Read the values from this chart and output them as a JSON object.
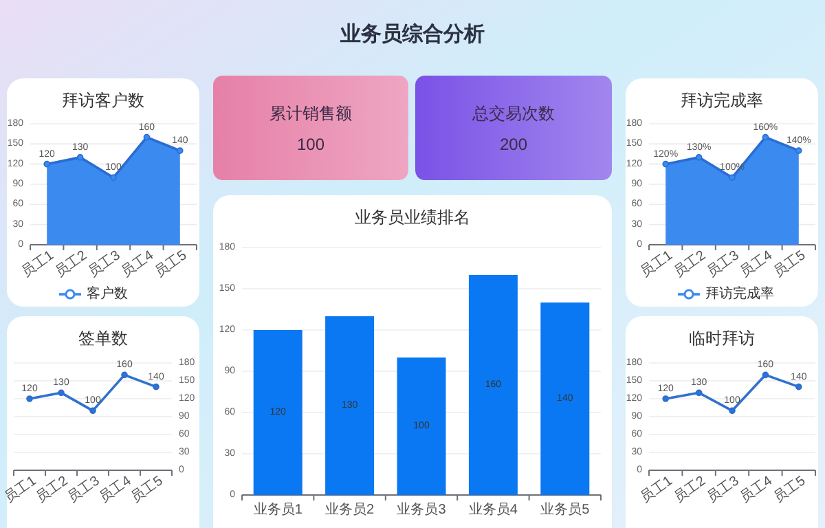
{
  "chart_data": [
    {
      "type": "other",
      "title": "业务员综合分析"
    },
    {
      "type": "area",
      "title": "拜访客户数",
      "categories": [
        "员工1",
        "员工2",
        "员工3",
        "员工4",
        "员工5"
      ],
      "series": [
        {
          "name": "客户数",
          "color": "#3b8af0",
          "values": [
            120,
            130,
            100,
            160,
            140
          ]
        }
      ],
      "ylim": [
        0,
        180
      ],
      "yticks": [
        0,
        30,
        60,
        90,
        120,
        150,
        180
      ],
      "grid": "y",
      "legend": "bottom",
      "marker": "circle",
      "data_labels": true
    },
    {
      "type": "other",
      "title": "累计销售额",
      "values": [
        100
      ],
      "data_labels": true,
      "color": "#e680a8"
    },
    {
      "type": "other",
      "title": "总交易次数",
      "values": [
        200
      ],
      "data_labels": true,
      "color": "#7a52e6"
    },
    {
      "type": "area",
      "title": "拜访完成率",
      "categories": [
        "员工1",
        "员工2",
        "员工3",
        "员工4",
        "员工5"
      ],
      "series": [
        {
          "name": "拜访完成率",
          "color": "#3b8af0",
          "values": [
            120,
            130,
            100,
            160,
            140
          ],
          "value_labels": [
            "120%",
            "130%",
            "100%",
            "160%",
            "140%"
          ]
        }
      ],
      "ylim": [
        0,
        180
      ],
      "yticks": [
        0,
        30,
        60,
        90,
        120,
        150,
        180
      ],
      "grid": "y",
      "legend": "bottom",
      "marker": "circle"
    },
    {
      "type": "line",
      "title": "签单数",
      "categories": [
        "员工1",
        "员工2",
        "员工3",
        "员工4",
        "员工5"
      ],
      "series": [
        {
          "color": "#2f72d0",
          "axis": "y2",
          "values": [
            120,
            130,
            100,
            160,
            140
          ]
        }
      ],
      "y2lim": [
        0,
        180
      ],
      "y2ticks": [
        0,
        30,
        60,
        90,
        120,
        150,
        180
      ],
      "grid": "y",
      "marker": "circle",
      "data_labels": true
    },
    {
      "type": "bar",
      "title": "业务员业绩排名",
      "categories": [
        "业务员1",
        "业务员2",
        "业务员3",
        "业务员4",
        "业务员5"
      ],
      "series": [
        {
          "color": "#0a78f2",
          "values": [
            120,
            130,
            100,
            160,
            140
          ]
        }
      ],
      "ylim": [
        0,
        180
      ],
      "yticks": [
        0,
        30,
        60,
        90,
        120,
        150,
        180
      ],
      "grid": "y",
      "data_labels": true
    },
    {
      "type": "line",
      "title": "临时拜访",
      "categories": [
        "员工1",
        "员工2",
        "员工3",
        "员工4",
        "员工5"
      ],
      "series": [
        {
          "color": "#2f72d0",
          "values": [
            120,
            130,
            100,
            160,
            140
          ]
        }
      ],
      "ylim": [
        0,
        180
      ],
      "yticks": [
        0,
        30,
        60,
        90,
        120,
        150,
        180
      ],
      "grid": "y",
      "marker": "circle",
      "data_labels": true
    }
  ]
}
